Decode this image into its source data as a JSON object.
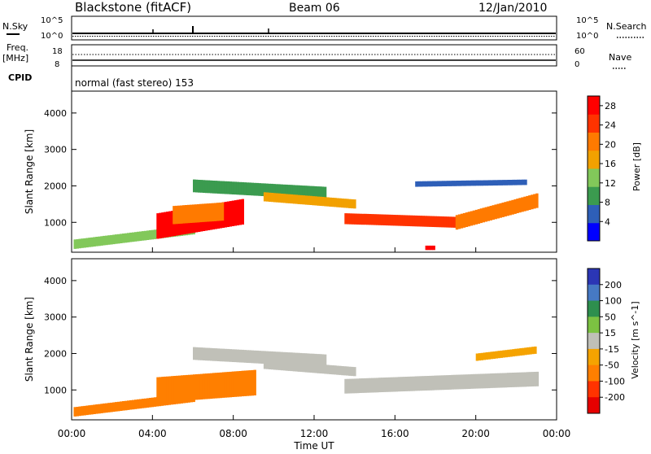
{
  "header": {
    "station": "Blackstone (fitACF)",
    "beam": "Beam 06",
    "date": "12/Jan/2010"
  },
  "panels_top": {
    "nsky_label": "N.Sky",
    "nsky_ticks": [
      "10^5",
      "10^0"
    ],
    "nsearch_label": "N.Search",
    "nsearch_ticks": [
      "10^5",
      "10^0"
    ],
    "freq_label": "Freq.",
    "freq_unit": "[MHz]",
    "freq_ticks": [
      "18",
      "8"
    ],
    "nave_label": "Nave",
    "nave_ticks": [
      "60",
      "0"
    ],
    "cpid_label": "CPID",
    "cpid_text": "normal (fast stereo) 153"
  },
  "axes": {
    "ylabel": "Slant Range [km]",
    "yticks": [
      1000,
      2000,
      3000,
      4000
    ],
    "ylim": [
      180,
      4600
    ],
    "xlabel": "Time UT",
    "xticks": [
      "00:00",
      "04:00",
      "08:00",
      "12:00",
      "16:00",
      "20:00",
      "00:00"
    ],
    "xlim_hours": [
      0,
      24
    ]
  },
  "colors": {
    "power": [
      "#0000ff",
      "#2e5fb8",
      "#3b9b4f",
      "#82c85a",
      "#f2a100",
      "#ff7a00",
      "#ff3300",
      "#ff0000"
    ],
    "velocity": [
      "#2b36b5",
      "#4679c4",
      "#2e8f4e",
      "#7cc242",
      "#c0c0b8",
      "#f5a300",
      "#ff7f00",
      "#ff3300",
      "#e60000"
    ]
  },
  "chart_data": [
    {
      "type": "heatmap",
      "title": "Power",
      "ylabel": "Slant Range [km]",
      "xlabel": "",
      "colorbar_label": "Power [dB]",
      "colorbar_ticks": [
        4,
        8,
        12,
        16,
        20,
        24,
        28
      ],
      "colorbar_range": [
        0,
        30
      ],
      "regions": [
        {
          "x": [
            0.1,
            6.0
          ],
          "y_center_start": 400,
          "y_center_end": 800,
          "thickness": 260,
          "level": 3
        },
        {
          "x": [
            4.2,
            8.5
          ],
          "y_center_start": 900,
          "y_center_end": 1300,
          "thickness": 700,
          "level": 7
        },
        {
          "x": [
            5.0,
            7.5
          ],
          "y_center_start": 1200,
          "y_center_end": 1300,
          "thickness": 500,
          "level": 5
        },
        {
          "x": [
            6.0,
            12.5
          ],
          "y_center_start": 2000,
          "y_center_end": 1800,
          "thickness": 350,
          "level": 2
        },
        {
          "x": [
            9.5,
            14.0
          ],
          "y_center_start": 1700,
          "y_center_end": 1500,
          "thickness": 250,
          "level": 4
        },
        {
          "x": [
            13.5,
            19.0
          ],
          "y_center_start": 1100,
          "y_center_end": 1000,
          "thickness": 300,
          "level": 6
        },
        {
          "x": [
            19.0,
            23.0
          ],
          "y_center_start": 1000,
          "y_center_end": 1600,
          "thickness": 400,
          "level": 5
        },
        {
          "x": [
            17.0,
            22.5
          ],
          "y_center_start": 2050,
          "y_center_end": 2100,
          "thickness": 150,
          "level": 1
        },
        {
          "x": [
            17.5,
            17.9
          ],
          "y_center_start": 300,
          "y_center_end": 300,
          "thickness": 120,
          "level": 7
        }
      ]
    },
    {
      "type": "heatmap",
      "title": "Velocity",
      "ylabel": "Slant Range [km]",
      "xlabel": "Time UT",
      "colorbar_label": "Velocity [m s^-1]",
      "colorbar_ticks": [
        200,
        100,
        50,
        15,
        -15,
        -50,
        -100,
        -200
      ],
      "colorbar_range": [
        -250,
        250
      ],
      "regions": [
        {
          "x": [
            0.1,
            6.0
          ],
          "y_center_start": 400,
          "y_center_end": 800,
          "thickness": 260,
          "value": -60
        },
        {
          "x": [
            4.2,
            9.0
          ],
          "y_center_start": 1000,
          "y_center_end": 1200,
          "thickness": 700,
          "value": -70
        },
        {
          "x": [
            6.0,
            12.5
          ],
          "y_center_start": 2000,
          "y_center_end": 1800,
          "thickness": 350,
          "value": 0
        },
        {
          "x": [
            9.5,
            14.0
          ],
          "y_center_start": 1700,
          "y_center_end": 1500,
          "thickness": 250,
          "value": 0
        },
        {
          "x": [
            13.5,
            23.0
          ],
          "y_center_start": 1100,
          "y_center_end": 1300,
          "thickness": 400,
          "value": 0
        },
        {
          "x": [
            20.0,
            23.0
          ],
          "y_center_start": 1900,
          "y_center_end": 2100,
          "thickness": 200,
          "value": -50
        }
      ]
    }
  ]
}
